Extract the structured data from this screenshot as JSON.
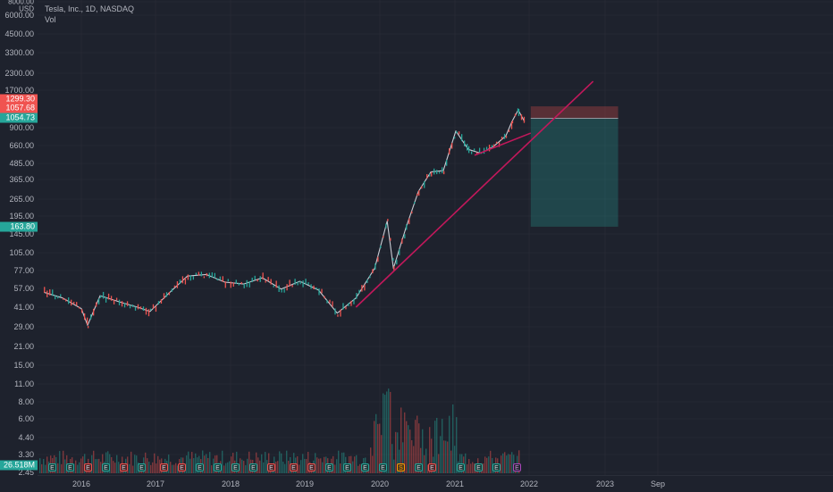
{
  "legend": {
    "symbol": "Tesla, Inc., 1D, NASDAQ",
    "vol_label": "Vol"
  },
  "price_axis": {
    "unit_top": "8000.00",
    "currency": "USD",
    "ticks": [
      "6000.00",
      "4500.00",
      "3300.00",
      "2300.00",
      "1700.00",
      "900.00",
      "660.00",
      "485.00",
      "365.00",
      "265.00",
      "195.00",
      "145.00",
      "105.00",
      "77.00",
      "57.00",
      "41.00",
      "29.00",
      "21.00",
      "15.00",
      "11.00",
      "8.00",
      "6.00",
      "4.40",
      "3.30",
      "2.45"
    ],
    "badges": [
      {
        "label": "1299.30",
        "color": "#f05350"
      },
      {
        "label": "1057.68",
        "color": "#f05350"
      },
      {
        "label": "1054.73",
        "color": "#26a69a"
      },
      {
        "label": "163.80",
        "color": "#26a69a"
      },
      {
        "label": "26.518M",
        "color": "#26a69a"
      }
    ]
  },
  "time_axis": {
    "ticks": [
      "2016",
      "2017",
      "2018",
      "2019",
      "2020",
      "2021",
      "2022",
      "2023",
      "Sep"
    ]
  },
  "earnings_markers": [
    {
      "label": "E",
      "color": "g"
    },
    {
      "label": "E",
      "color": "g"
    },
    {
      "label": "E",
      "color": "r"
    },
    {
      "label": "E",
      "color": "g"
    },
    {
      "label": "E",
      "color": "r"
    },
    {
      "label": "E",
      "color": "g"
    },
    {
      "label": "E",
      "color": "r"
    },
    {
      "label": "E",
      "color": "r"
    },
    {
      "label": "E",
      "color": "g"
    },
    {
      "label": "E",
      "color": "g"
    },
    {
      "label": "E",
      "color": "g"
    },
    {
      "label": "E",
      "color": "g"
    },
    {
      "label": "E",
      "color": "r"
    },
    {
      "label": "E",
      "color": "r"
    },
    {
      "label": "E",
      "color": "r"
    },
    {
      "label": "E",
      "color": "g"
    },
    {
      "label": "E",
      "color": "g"
    },
    {
      "label": "E",
      "color": "g"
    },
    {
      "label": "E",
      "color": "g"
    },
    {
      "label": "S",
      "color": "o"
    },
    {
      "label": "E",
      "color": "g"
    },
    {
      "label": "E",
      "color": "r"
    },
    {
      "label": "E",
      "color": "g"
    },
    {
      "label": "E",
      "color": "g"
    },
    {
      "label": "E",
      "color": "g"
    },
    {
      "label": "E",
      "color": "p"
    }
  ],
  "colors": {
    "background": "#1e222d",
    "up": "#26a69a",
    "down": "#ef5350",
    "trendline": "#c2185b",
    "grid": "#2a2e39"
  },
  "price_series": [
    {
      "date": "2015-07",
      "price": 53
    },
    {
      "date": "2015-10",
      "price": 48
    },
    {
      "date": "2016-01",
      "price": 40
    },
    {
      "date": "2016-02",
      "price": 30
    },
    {
      "date": "2016-04",
      "price": 50
    },
    {
      "date": "2016-07",
      "price": 45
    },
    {
      "date": "2016-10",
      "price": 41
    },
    {
      "date": "2016-12",
      "price": 38
    },
    {
      "date": "2017-03",
      "price": 52
    },
    {
      "date": "2017-06",
      "price": 70
    },
    {
      "date": "2017-09",
      "price": 72
    },
    {
      "date": "2017-12",
      "price": 63
    },
    {
      "date": "2018-03",
      "price": 61
    },
    {
      "date": "2018-06",
      "price": 68
    },
    {
      "date": "2018-09",
      "price": 56
    },
    {
      "date": "2018-12",
      "price": 64
    },
    {
      "date": "2019-03",
      "price": 55
    },
    {
      "date": "2019-06",
      "price": 37
    },
    {
      "date": "2019-09",
      "price": 48
    },
    {
      "date": "2019-12",
      "price": 80
    },
    {
      "date": "2020-02",
      "price": 180
    },
    {
      "date": "2020-03",
      "price": 80
    },
    {
      "date": "2020-05",
      "price": 160
    },
    {
      "date": "2020-07",
      "price": 300
    },
    {
      "date": "2020-09",
      "price": 420
    },
    {
      "date": "2020-11",
      "price": 430
    },
    {
      "date": "2021-01",
      "price": 850
    },
    {
      "date": "2021-03",
      "price": 620
    },
    {
      "date": "2021-05",
      "price": 580
    },
    {
      "date": "2021-07",
      "price": 650
    },
    {
      "date": "2021-09",
      "price": 780
    },
    {
      "date": "2021-10",
      "price": 1000
    },
    {
      "date": "2021-11",
      "price": 1220
    },
    {
      "date": "2021-12",
      "price": 1000
    }
  ],
  "trendlines": [
    {
      "from": {
        "date": "2019-09",
        "price": 41
      },
      "to": {
        "date": "2022-11",
        "price": 2000
      }
    },
    {
      "from": {
        "date": "2021-04",
        "price": 560
      },
      "to": {
        "date": "2022-01",
        "price": 820
      }
    }
  ],
  "position_box": {
    "start": "2022-01",
    "end": "2023-03",
    "stop": 1299.3,
    "entry": 1057.68,
    "target": 163.8
  }
}
